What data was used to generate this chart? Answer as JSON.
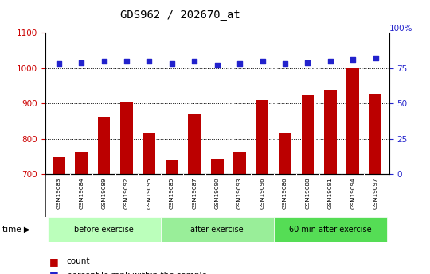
{
  "title": "GDS962 / 202670_at",
  "samples": [
    "GSM19083",
    "GSM19084",
    "GSM19089",
    "GSM19092",
    "GSM19095",
    "GSM19085",
    "GSM19087",
    "GSM19090",
    "GSM19093",
    "GSM19096",
    "GSM19086",
    "GSM19088",
    "GSM19091",
    "GSM19094",
    "GSM19097"
  ],
  "counts": [
    748,
    763,
    862,
    905,
    816,
    740,
    868,
    743,
    762,
    910,
    818,
    925,
    938,
    1002,
    928
  ],
  "percentiles": [
    78,
    79,
    80,
    80,
    80,
    78,
    80,
    77,
    78,
    80,
    78,
    79,
    80,
    81,
    82
  ],
  "groups": [
    {
      "label": "before exercise",
      "start": 0,
      "end": 5,
      "color": "#bbffbb"
    },
    {
      "label": "after exercise",
      "start": 5,
      "end": 10,
      "color": "#99ee99"
    },
    {
      "label": "60 min after exercise",
      "start": 10,
      "end": 15,
      "color": "#55dd55"
    }
  ],
  "ylim_left": [
    700,
    1100
  ],
  "ylim_right": [
    0,
    100
  ],
  "bar_color": "#bb0000",
  "dot_color": "#2222cc",
  "grid_color": "#000000",
  "tick_color_left": "#cc0000",
  "tick_color_right": "#2222cc",
  "bg_color": "#ffffff",
  "label_area_color": "#cccccc",
  "right_yticks": [
    0,
    25,
    50,
    75
  ],
  "left_yticks": [
    700,
    800,
    900,
    1000,
    1100
  ]
}
